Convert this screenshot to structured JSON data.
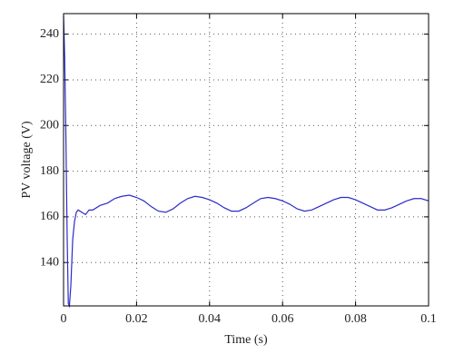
{
  "chart_data": {
    "type": "line",
    "xlabel": "Time (s)",
    "ylabel": "PV voltage (V)",
    "x": [
      0,
      0.0003,
      0.0006,
      0.001,
      0.0013,
      0.0016,
      0.002,
      0.0025,
      0.003,
      0.0035,
      0.004,
      0.005,
      0.006,
      0.007,
      0.008,
      0.01,
      0.012,
      0.014,
      0.016,
      0.018,
      0.02,
      0.022,
      0.024,
      0.026,
      0.028,
      0.03,
      0.032,
      0.034,
      0.036,
      0.038,
      0.04,
      0.042,
      0.044,
      0.046,
      0.048,
      0.05,
      0.052,
      0.054,
      0.056,
      0.058,
      0.06,
      0.062,
      0.064,
      0.066,
      0.068,
      0.07,
      0.072,
      0.074,
      0.076,
      0.078,
      0.08,
      0.082,
      0.084,
      0.086,
      0.088,
      0.09,
      0.092,
      0.094,
      0.096,
      0.098,
      0.1
    ],
    "series": [
      {
        "color": "#2b2bc8",
        "values": [
          248,
          230,
          200,
          150,
          122,
          121,
          130,
          150,
          158,
          162,
          163,
          162,
          161,
          163,
          163,
          165,
          166,
          168,
          169,
          169.5,
          168.5,
          167,
          164.5,
          162.5,
          162,
          163.5,
          166,
          168,
          169,
          168.5,
          167.5,
          166,
          164,
          162.5,
          162.5,
          164,
          166,
          168,
          168.5,
          168,
          167,
          165.5,
          163.5,
          162.5,
          163,
          164.5,
          166,
          167.5,
          168.5,
          168.5,
          167.5,
          166,
          164.5,
          163,
          163,
          164,
          165.5,
          167,
          168,
          168,
          167
        ]
      }
    ],
    "xlim": [
      0,
      0.1
    ],
    "xticks": [
      0,
      0.02,
      0.04,
      0.06,
      0.08,
      0.1
    ],
    "ylim": [
      121,
      249
    ],
    "yticks": [
      140,
      160,
      180,
      200,
      220,
      240
    ],
    "grid": true
  }
}
